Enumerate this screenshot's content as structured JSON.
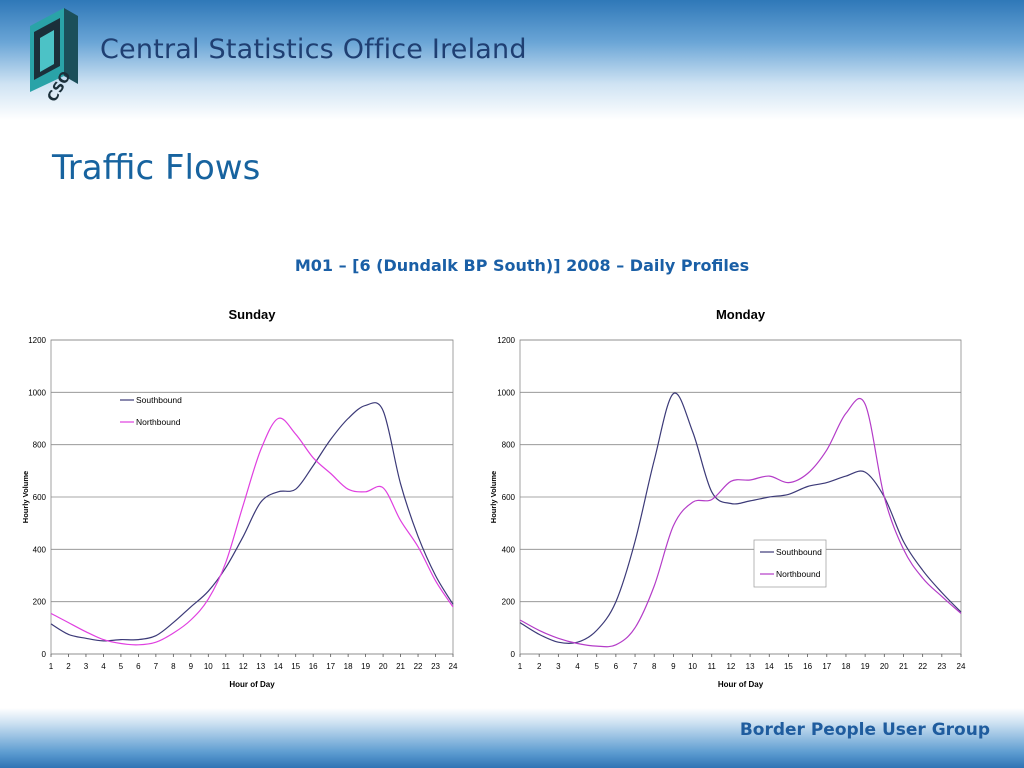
{
  "header": {
    "logo_text": "CSO",
    "brand": "Central Statistics Office Ireland"
  },
  "slide": {
    "title": "Traffic Flows",
    "subtitle": "M01 – [6 (Dundalk BP South)] 2008 – Daily Profiles"
  },
  "footer": {
    "text": "Border People User Group"
  },
  "colors": {
    "southbound": "#3c3a78",
    "northbound": "#e040e0",
    "grid": "#808080"
  },
  "chart_data": [
    {
      "type": "line",
      "title": "Sunday",
      "xlabel": "Hour of Day",
      "ylabel": "Hourly Volume",
      "x": [
        1,
        2,
        3,
        4,
        5,
        6,
        7,
        8,
        9,
        10,
        11,
        12,
        13,
        14,
        15,
        16,
        17,
        18,
        19,
        20,
        21,
        22,
        23,
        24
      ],
      "ylim": [
        0,
        1200
      ],
      "yticks": [
        0,
        200,
        400,
        600,
        800,
        1000,
        1200
      ],
      "grid": true,
      "legend": "top-left",
      "series": [
        {
          "name": "Southbound",
          "color": "#3c3a78",
          "values": [
            115,
            75,
            60,
            50,
            55,
            55,
            70,
            120,
            180,
            240,
            330,
            450,
            580,
            620,
            630,
            720,
            820,
            900,
            950,
            930,
            650,
            450,
            300,
            190
          ]
        },
        {
          "name": "Northbound",
          "color": "#e040e0",
          "values": [
            155,
            120,
            85,
            55,
            40,
            35,
            45,
            80,
            130,
            210,
            350,
            570,
            780,
            900,
            840,
            750,
            690,
            630,
            620,
            635,
            510,
            410,
            280,
            180
          ]
        }
      ]
    },
    {
      "type": "line",
      "title": "Monday",
      "xlabel": "Hour of Day",
      "ylabel": "Hourly Volume",
      "x": [
        1,
        2,
        3,
        4,
        5,
        6,
        7,
        8,
        9,
        10,
        11,
        12,
        13,
        14,
        15,
        16,
        17,
        18,
        19,
        20,
        21,
        22,
        23,
        24
      ],
      "ylim": [
        0,
        1200
      ],
      "yticks": [
        0,
        200,
        400,
        600,
        800,
        1000,
        1200
      ],
      "grid": true,
      "legend": "bottom-right",
      "series": [
        {
          "name": "Southbound",
          "color": "#3c3a78",
          "values": [
            120,
            75,
            45,
            45,
            90,
            200,
            430,
            740,
            995,
            850,
            620,
            575,
            585,
            600,
            610,
            640,
            655,
            680,
            695,
            600,
            430,
            320,
            235,
            160
          ]
        },
        {
          "name": "Northbound",
          "color": "#b43cc8",
          "values": [
            130,
            90,
            60,
            40,
            30,
            35,
            100,
            260,
            490,
            580,
            590,
            660,
            665,
            680,
            655,
            690,
            780,
            920,
            955,
            600,
            400,
            290,
            220,
            155
          ]
        }
      ]
    }
  ]
}
